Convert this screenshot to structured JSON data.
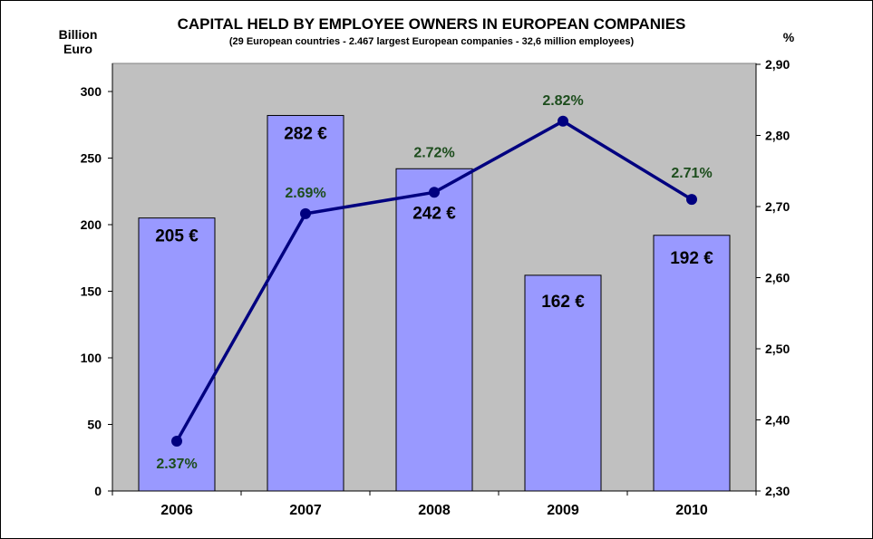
{
  "chart_data": {
    "type": "bar+line",
    "title": "CAPITAL HELD BY EMPLOYEE OWNERS IN EUROPEAN COMPANIES",
    "subtitle": "(29 European countries  - 2.467 largest European companies - 32,6 million employees)",
    "ylabel_left": [
      "Billion",
      "Euro"
    ],
    "ylabel_right": "%",
    "categories": [
      "2006",
      "2007",
      "2008",
      "2009",
      "2010"
    ],
    "bars": {
      "values": [
        205,
        282,
        242,
        162,
        192
      ],
      "labels": [
        "205 €",
        "282 €",
        "242 €",
        "162 €",
        "192 €"
      ],
      "color": "#9999ff"
    },
    "line": {
      "values": [
        2.37,
        2.69,
        2.72,
        2.82,
        2.71
      ],
      "labels": [
        "2.37%",
        "2.69%",
        "2.72%",
        "2.82%",
        "2.71%"
      ],
      "color": "#000080"
    },
    "ylim_left": [
      0,
      300
    ],
    "yticks_left": [
      "0",
      "50",
      "100",
      "150",
      "200",
      "250",
      "300"
    ],
    "ylim_right": [
      2.3,
      2.9
    ],
    "yticks_right": [
      "2,30",
      "2,40",
      "2,50",
      "2,60",
      "2,70",
      "2,80",
      "2,90"
    ],
    "plot_background": "#c0c0c0",
    "grid": false
  }
}
